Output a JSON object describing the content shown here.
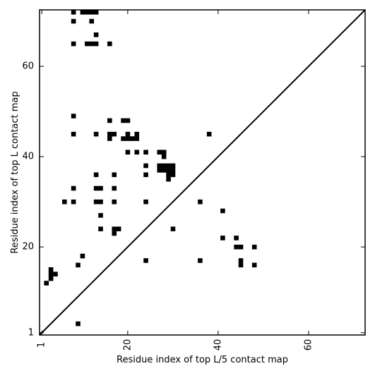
{
  "chart_data": {
    "type": "heatmap",
    "subtype": "contact-map-scatter",
    "xlabel": "Residue index of top L/5 contact map",
    "ylabel": "Residue index of top L contact map",
    "xlim": [
      0.5,
      72.5
    ],
    "ylim": [
      0.5,
      72.5
    ],
    "x_ticks": [
      1,
      20,
      40,
      60
    ],
    "y_ticks": [
      1,
      20,
      40,
      60
    ],
    "x_tick_labels": [
      "1",
      "20",
      "40",
      "60"
    ],
    "y_tick_labels": [
      "1",
      "20",
      "40",
      "60"
    ],
    "x_tick_rotation_deg": 270,
    "diagonal": true,
    "grid": false,
    "marker_color": "#000000",
    "upper_triangle_points": [
      [
        8,
        72
      ],
      [
        10,
        72
      ],
      [
        11,
        72
      ],
      [
        12,
        72
      ],
      [
        13,
        72
      ],
      [
        8,
        70
      ],
      [
        12,
        70
      ],
      [
        13,
        67
      ],
      [
        8,
        65
      ],
      [
        11,
        65
      ],
      [
        12,
        65
      ],
      [
        13,
        65
      ],
      [
        16,
        65
      ],
      [
        8,
        49
      ],
      [
        16,
        48
      ],
      [
        19,
        48
      ],
      [
        20,
        48
      ],
      [
        8,
        45
      ],
      [
        13,
        45
      ],
      [
        16,
        45
      ],
      [
        17,
        45
      ],
      [
        20,
        45
      ],
      [
        22,
        45
      ],
      [
        38,
        45
      ],
      [
        16,
        44
      ],
      [
        19,
        44
      ],
      [
        20,
        44
      ],
      [
        21,
        44
      ],
      [
        22,
        44
      ],
      [
        20,
        41
      ],
      [
        22,
        41
      ],
      [
        24,
        41
      ],
      [
        27,
        41
      ],
      [
        28,
        41
      ],
      [
        28,
        40
      ],
      [
        24,
        38
      ],
      [
        27,
        38
      ],
      [
        28,
        38
      ],
      [
        29,
        38
      ],
      [
        30,
        38
      ],
      [
        27,
        37
      ],
      [
        28,
        37
      ],
      [
        29,
        37
      ],
      [
        30,
        37
      ],
      [
        13,
        36
      ],
      [
        17,
        36
      ],
      [
        24,
        36
      ],
      [
        29,
        36
      ],
      [
        30,
        36
      ],
      [
        29,
        35
      ],
      [
        8,
        33
      ],
      [
        13,
        33
      ],
      [
        14,
        33
      ],
      [
        17,
        33
      ],
      [
        6,
        30
      ],
      [
        8,
        30
      ],
      [
        13,
        30
      ],
      [
        14,
        30
      ],
      [
        17,
        30
      ],
      [
        24,
        30
      ],
      [
        36,
        30
      ],
      [
        41,
        28
      ],
      [
        14,
        27
      ],
      [
        14,
        24
      ],
      [
        17,
        24
      ],
      [
        18,
        24
      ],
      [
        30,
        24
      ],
      [
        17,
        23
      ]
    ],
    "lower_triangle_points": [
      [
        41,
        22
      ],
      [
        44,
        22
      ],
      [
        44,
        20
      ],
      [
        45,
        20
      ],
      [
        48,
        20
      ],
      [
        10,
        18
      ],
      [
        24,
        17
      ],
      [
        36,
        17
      ],
      [
        45,
        17
      ],
      [
        9,
        16
      ],
      [
        45,
        16
      ],
      [
        48,
        16
      ],
      [
        3,
        15
      ],
      [
        3,
        14
      ],
      [
        4,
        14
      ],
      [
        3,
        13
      ],
      [
        2,
        12
      ],
      [
        9,
        3
      ]
    ]
  }
}
